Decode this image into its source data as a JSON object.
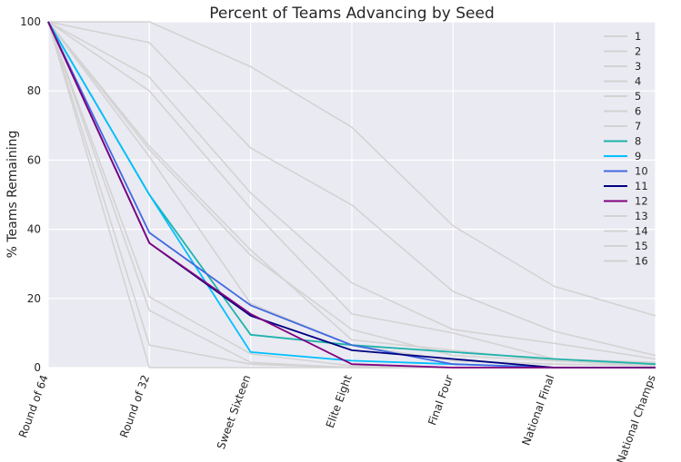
{
  "chart_data": {
    "type": "line",
    "title": "Percent of Teams Advancing by Seed",
    "xlabel": "",
    "ylabel": "% Teams Remaining",
    "categories": [
      "Round of 64",
      "Round of 32",
      "Sweet Sixteen",
      "Elite Eight",
      "Final Four",
      "National Final",
      "National Champs"
    ],
    "ylim": [
      0,
      100
    ],
    "yticks": [
      0,
      20,
      40,
      60,
      80,
      100
    ],
    "grid": true,
    "legend_position": "top-right",
    "series": [
      {
        "name": "1",
        "color": "#d3d3d3",
        "values": [
          100,
          100,
          87,
          69.5,
          41,
          23.5,
          15
        ]
      },
      {
        "name": "2",
        "color": "#d3d3d3",
        "values": [
          100,
          94,
          63.5,
          47,
          22,
          10.5,
          3.5
        ]
      },
      {
        "name": "3",
        "color": "#d3d3d3",
        "values": [
          100,
          84,
          50.5,
          24.5,
          11,
          7,
          2.5
        ]
      },
      {
        "name": "4",
        "color": "#d3d3d3",
        "values": [
          100,
          80,
          46,
          15.5,
          10,
          2.5,
          1.5
        ]
      },
      {
        "name": "5",
        "color": "#d3d3d3",
        "values": [
          100,
          64,
          34,
          8,
          5,
          2,
          0.5
        ]
      },
      {
        "name": "6",
        "color": "#d3d3d3",
        "values": [
          100,
          63,
          32.5,
          11,
          3.5,
          2,
          0.5
        ]
      },
      {
        "name": "7",
        "color": "#d3d3d3",
        "values": [
          100,
          61,
          18.5,
          6.5,
          2,
          1,
          0.5
        ]
      },
      {
        "name": "8",
        "color": "#20b2aa",
        "values": [
          100,
          50,
          9.5,
          6.5,
          4.5,
          2.5,
          1
        ]
      },
      {
        "name": "9",
        "color": "#00bfff",
        "values": [
          100,
          50,
          4.5,
          2,
          1,
          0,
          0
        ]
      },
      {
        "name": "10",
        "color": "#4169e1",
        "values": [
          100,
          39,
          18,
          6.5,
          1,
          0,
          0
        ]
      },
      {
        "name": "11",
        "color": "#000080",
        "values": [
          100,
          36,
          15,
          5,
          2.5,
          0,
          0
        ]
      },
      {
        "name": "12",
        "color": "#800080",
        "values": [
          100,
          36,
          15.5,
          1,
          0,
          0,
          0
        ]
      },
      {
        "name": "13",
        "color": "#d3d3d3",
        "values": [
          100,
          20.5,
          4,
          0.5,
          0,
          0,
          0
        ]
      },
      {
        "name": "14",
        "color": "#d3d3d3",
        "values": [
          100,
          16.5,
          1.5,
          0,
          0,
          0,
          0
        ]
      },
      {
        "name": "15",
        "color": "#d3d3d3",
        "values": [
          100,
          6.5,
          1,
          0,
          0,
          0,
          0
        ]
      },
      {
        "name": "16",
        "color": "#d3d3d3",
        "values": [
          100,
          0,
          0,
          0,
          0,
          0,
          0
        ]
      }
    ]
  }
}
